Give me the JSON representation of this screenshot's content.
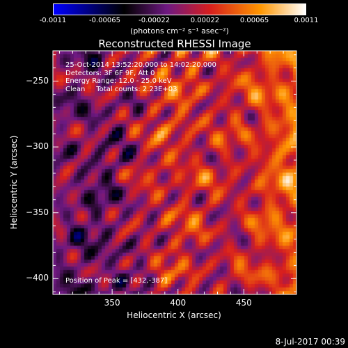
{
  "chart_data": {
    "type": "heatmap",
    "title": "Reconstructed RHESSI Image",
    "xlabel": "Heliocentric X (arcsec)",
    "ylabel": "Heliocentric Y (arcsec)",
    "xlim": [
      305,
      490
    ],
    "ylim": [
      -412,
      -227
    ],
    "x_ticks": [
      350,
      400,
      450
    ],
    "y_ticks": [
      -250,
      -300,
      -350,
      -400
    ],
    "colorbar": {
      "label": "(photons cm⁻² s⁻¹ asec⁻²)",
      "range": [
        -0.0011,
        0.0011
      ],
      "ticks": [
        "-0.0011",
        "-0.00065",
        "-0.00022",
        "0.00022",
        "0.00065",
        "0.0011"
      ]
    },
    "annotations": [
      "25-Oct-2014 13:52:20.000 to 14:02:20.000",
      "Detectors: 3F 6F 9F, Att 0",
      "Energy Range: 12.0 - 25.0 keV",
      "Clean     Total counts: 2.23E+03"
    ],
    "peak_label": "Position of Peak = [432,-387]",
    "colors": [
      "#0000ff",
      "#000000",
      "#7a1a8a",
      "#e02020",
      "#ff9900",
      "#ffffff"
    ]
  },
  "footer": {
    "date": "8-Jul-2017 00:39"
  }
}
